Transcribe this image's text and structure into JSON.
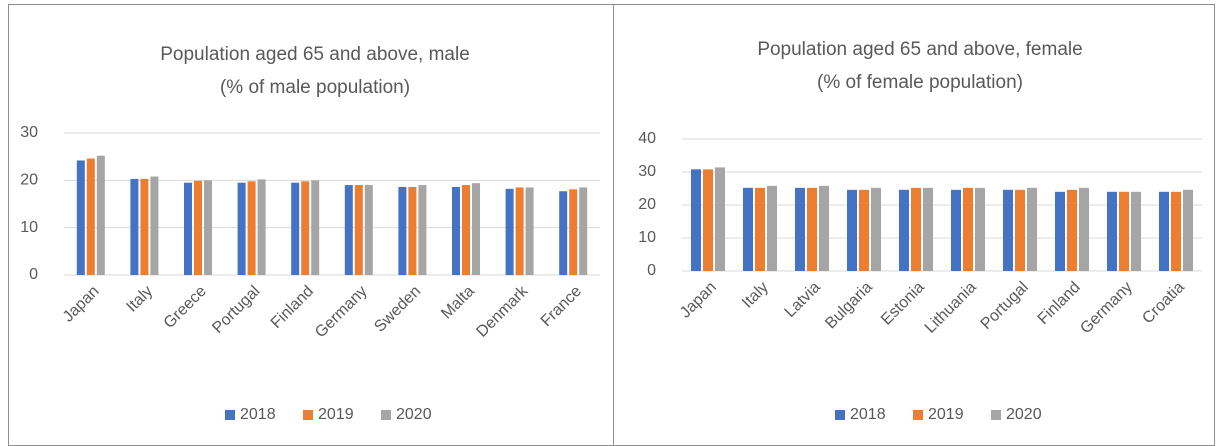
{
  "chart_data": [
    {
      "type": "bar",
      "title": "Population aged 65 and above, male",
      "subtitle": "(% of male population)",
      "categories": [
        "Japan",
        "Italy",
        "Greece",
        "Portugal",
        "Finland",
        "Germany",
        "Sweden",
        "Malta",
        "Denmark",
        "France"
      ],
      "series": [
        {
          "name": "2018",
          "color": "#4472c4",
          "values": [
            24.2,
            20.3,
            19.5,
            19.5,
            19.5,
            19.0,
            18.6,
            18.6,
            18.2,
            17.7
          ]
        },
        {
          "name": "2019",
          "color": "#ed7d31",
          "values": [
            24.6,
            20.3,
            19.9,
            19.8,
            19.8,
            19.0,
            18.6,
            19.0,
            18.5,
            18.1
          ]
        },
        {
          "name": "2020",
          "color": "#a5a5a5",
          "values": [
            25.2,
            20.8,
            20.0,
            20.2,
            20.0,
            19.0,
            19.0,
            19.4,
            18.5,
            18.5
          ]
        }
      ],
      "ylim": [
        0,
        30
      ],
      "yticks": [
        0,
        10,
        20,
        30
      ],
      "grid": true,
      "legend": "bottom"
    },
    {
      "type": "bar",
      "title": "Population aged 65 and above, female",
      "subtitle": "(% of female population)",
      "categories": [
        "Japan",
        "Italy",
        "Latvia",
        "Bulgaria",
        "Estonia",
        "Lithuania",
        "Portugal",
        "Finland",
        "Germany",
        "Croatia"
      ],
      "series": [
        {
          "name": "2018",
          "color": "#4472c4",
          "values": [
            30.8,
            25.2,
            25.2,
            24.6,
            24.6,
            24.6,
            24.6,
            24.0,
            24.0,
            24.0
          ]
        },
        {
          "name": "2019",
          "color": "#ed7d31",
          "values": [
            30.8,
            25.2,
            25.2,
            24.6,
            25.2,
            25.2,
            24.6,
            24.6,
            24.0,
            24.0
          ]
        },
        {
          "name": "2020",
          "color": "#a5a5a5",
          "values": [
            31.4,
            25.8,
            25.8,
            25.2,
            25.2,
            25.2,
            25.2,
            25.2,
            24.0,
            24.6
          ]
        }
      ],
      "ylim": [
        0,
        40
      ],
      "yticks": [
        0,
        10,
        20,
        30,
        40
      ],
      "grid": true,
      "legend": "bottom"
    }
  ]
}
